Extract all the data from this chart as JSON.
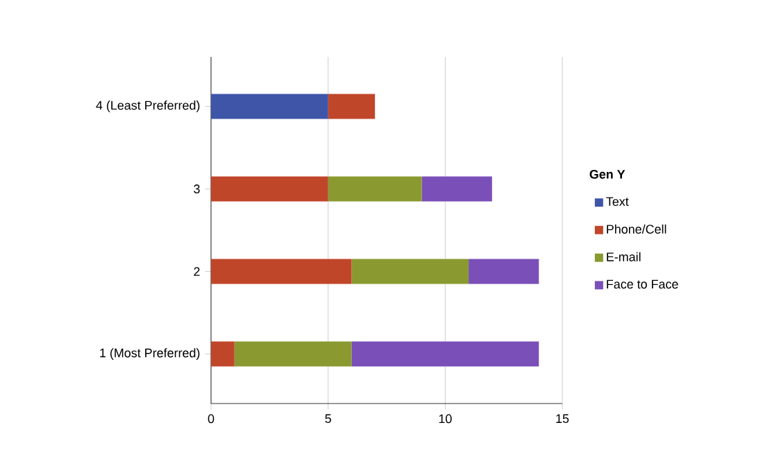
{
  "chart_data": {
    "type": "bar",
    "orientation": "horizontal",
    "stacked": true,
    "legend_title": "Gen Y",
    "categories": [
      "4 (Least Preferred)",
      "3",
      "2",
      "1 (Most Preferred)"
    ],
    "series": [
      {
        "name": "Text",
        "color": "#3f55a8",
        "values": [
          5,
          0,
          0,
          0
        ]
      },
      {
        "name": "Phone/Cell",
        "color": "#c0462a",
        "values": [
          2,
          5,
          6,
          1
        ]
      },
      {
        "name": "E-mail",
        "color": "#8a9a30",
        "values": [
          0,
          4,
          5,
          5
        ]
      },
      {
        "name": "Face to Face",
        "color": "#7a4fb8",
        "values": [
          0,
          3,
          3,
          8
        ]
      }
    ],
    "xlim": [
      0,
      15
    ],
    "xticks": [
      0,
      5,
      10,
      15
    ],
    "grid": "x",
    "legend": "right"
  }
}
